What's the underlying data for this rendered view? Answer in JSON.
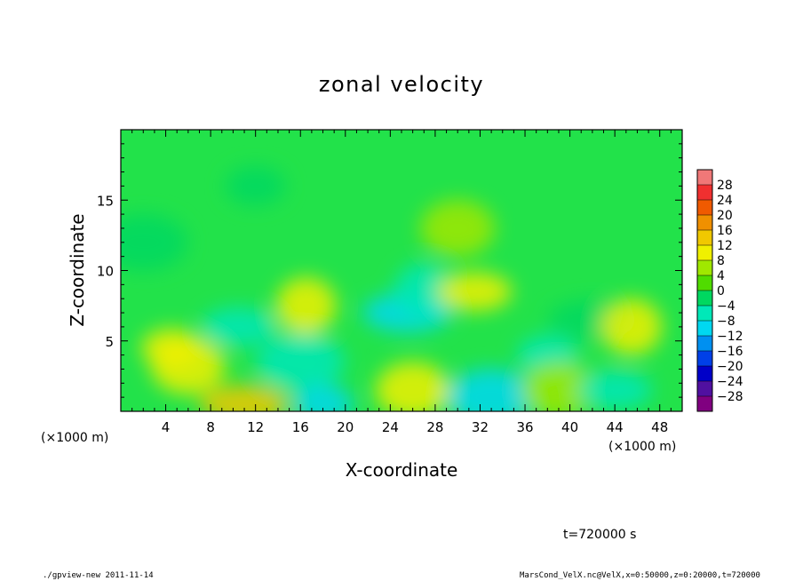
{
  "chart_data": {
    "type": "heatmap",
    "title": "zonal velocity",
    "xlabel": "X-coordinate",
    "ylabel": "Z-coordinate",
    "x_unit_label": "(×1000 m)",
    "y_unit_label": "(×1000 m)",
    "xlim": [
      0,
      50
    ],
    "ylim": [
      0,
      20
    ],
    "x_ticks": [
      4,
      8,
      12,
      16,
      20,
      24,
      28,
      32,
      36,
      40,
      44,
      48
    ],
    "y_ticks": [
      5,
      10,
      15
    ],
    "grid": false,
    "colorbar": {
      "levels": [
        "28",
        "24",
        "20",
        "16",
        "12",
        "8",
        "4",
        "0",
        "−4",
        "−8",
        "−12",
        "−16",
        "−20",
        "−24",
        "−28"
      ],
      "colors": [
        "#f07878",
        "#f03030",
        "#f05a00",
        "#f09000",
        "#f0c800",
        "#f0f000",
        "#a0e800",
        "#50dc00",
        "#00d860",
        "#00e8b8",
        "#00d8f0",
        "#0090f0",
        "#0040e8",
        "#0000c8",
        "#5010a0",
        "#800080"
      ],
      "range": [
        -28,
        28
      ],
      "step": 4
    },
    "features": [
      {
        "x": 4.5,
        "z": 4.5,
        "value": 10
      },
      {
        "x": 6,
        "z": 3.2,
        "value": 8
      },
      {
        "x": 11,
        "z": 0.5,
        "value": 12
      },
      {
        "x": 16.5,
        "z": 7.5,
        "value": 8
      },
      {
        "x": 10.5,
        "z": 6,
        "value": -8
      },
      {
        "x": 16,
        "z": 3.5,
        "value": -6
      },
      {
        "x": 18,
        "z": 0.5,
        "value": -12
      },
      {
        "x": 26,
        "z": 1.5,
        "value": 10
      },
      {
        "x": 25.5,
        "z": 7,
        "value": -10
      },
      {
        "x": 27,
        "z": 8.5,
        "value": -8
      },
      {
        "x": 31.5,
        "z": 8.5,
        "value": 8
      },
      {
        "x": 33,
        "z": 1,
        "value": -10
      },
      {
        "x": 38,
        "z": 4,
        "value": -6
      },
      {
        "x": 39,
        "z": 1.5,
        "value": 6
      },
      {
        "x": 42,
        "z": 6.5,
        "value": -4
      },
      {
        "x": 45.5,
        "z": 6,
        "value": 10
      },
      {
        "x": 44,
        "z": 1.5,
        "value": -8
      },
      {
        "x": 2,
        "z": 12,
        "value": -4
      },
      {
        "x": 12,
        "z": 16,
        "value": -2
      },
      {
        "x": 30,
        "z": 13,
        "value": 4
      }
    ]
  },
  "annotation": {
    "time": "t=720000 s"
  },
  "footer": {
    "left": "./gpview-new  2011-11-14",
    "right": "MarsCond_VelX.nc@VelX,x=0:50000,z=0:20000,t=720000"
  }
}
